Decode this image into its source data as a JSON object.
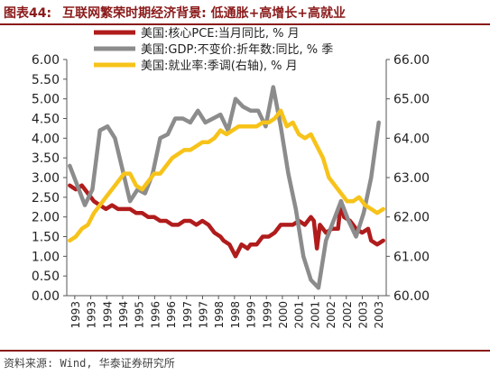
{
  "figure": {
    "label": "图表44:",
    "title": "互联网繁荣时期经济背景: 低通胀+高增长+高就业"
  },
  "source": "资料来源: Wind, 华泰证券研究所",
  "chart_data": {
    "type": "line",
    "title": "",
    "legend_position": "top-center",
    "grid": false,
    "x_tick_labels": [
      "1993",
      "1993",
      "1994",
      "1994",
      "1995",
      "1996",
      "1996",
      "1997",
      "1997",
      "1998",
      "1998",
      "1999",
      "1999",
      "2000",
      "2001",
      "2001",
      "2002",
      "2002",
      "2003",
      "2003"
    ],
    "x_range": [
      1992.9,
      2003.5
    ],
    "y_left": {
      "range": [
        0,
        6
      ],
      "ticks": [
        "0.00",
        "0.50",
        "1.00",
        "1.50",
        "2.00",
        "2.50",
        "3.00",
        "3.50",
        "4.00",
        "4.50",
        "5.00",
        "5.50",
        "6.00"
      ]
    },
    "y_right": {
      "range": [
        60,
        66
      ],
      "ticks": [
        "60.00",
        "61.00",
        "62.00",
        "63.00",
        "64.00",
        "65.00",
        "66.00"
      ]
    },
    "colors": {
      "pce": "#b01c1c",
      "gdp": "#8c8c8c",
      "emp": "#f7c31a"
    },
    "series": [
      {
        "key": "pce",
        "name": "美国:核心PCE:当月同比, % 月",
        "axis": "left",
        "x": [
          1993.0,
          1993.2,
          1993.4,
          1993.6,
          1993.8,
          1994.0,
          1994.2,
          1994.4,
          1994.6,
          1994.8,
          1995.0,
          1995.2,
          1995.4,
          1995.6,
          1995.8,
          1996.0,
          1996.2,
          1996.4,
          1996.6,
          1996.8,
          1997.0,
          1997.2,
          1997.4,
          1997.6,
          1997.8,
          1998.0,
          1998.1,
          1998.3,
          1998.5,
          1998.7,
          1998.9,
          1999.0,
          1999.2,
          1999.4,
          1999.6,
          1999.8,
          2000.0,
          2000.2,
          2000.4,
          2000.6,
          2000.8,
          2001.0,
          2001.1,
          2001.2,
          2001.3,
          2001.5,
          2001.7,
          2001.9,
          2002.0,
          2002.1,
          2002.3,
          2002.5,
          2002.7,
          2002.9,
          2003.0,
          2003.2,
          2003.4
        ],
        "values": [
          2.8,
          2.7,
          2.8,
          2.6,
          2.4,
          2.3,
          2.2,
          2.3,
          2.2,
          2.2,
          2.2,
          2.1,
          2.1,
          2.0,
          2.0,
          1.9,
          1.9,
          1.8,
          1.8,
          1.9,
          1.9,
          1.8,
          1.9,
          1.8,
          1.6,
          1.5,
          1.4,
          1.3,
          1.0,
          1.3,
          1.2,
          1.3,
          1.3,
          1.5,
          1.5,
          1.6,
          1.8,
          1.8,
          1.8,
          1.9,
          1.8,
          2.0,
          1.9,
          1.2,
          1.8,
          1.6,
          1.7,
          1.7,
          2.4,
          2.0,
          1.9,
          1.7,
          1.6,
          1.7,
          1.4,
          1.3,
          1.4
        ]
      },
      {
        "key": "gdp",
        "name": "美国:GDP:不变价:折年数:同比, % 季",
        "axis": "left",
        "x": [
          1993.0,
          1993.25,
          1993.5,
          1993.75,
          1994.0,
          1994.25,
          1994.5,
          1994.75,
          1995.0,
          1995.25,
          1995.5,
          1995.75,
          1996.0,
          1996.25,
          1996.5,
          1996.75,
          1997.0,
          1997.25,
          1997.5,
          1997.75,
          1998.0,
          1998.25,
          1998.5,
          1998.75,
          1999.0,
          1999.25,
          1999.5,
          1999.75,
          2000.0,
          2000.25,
          2000.5,
          2000.75,
          2001.0,
          2001.25,
          2001.5,
          2001.75,
          2002.0,
          2002.25,
          2002.5,
          2002.75,
          2003.0,
          2003.25
        ],
        "values": [
          3.3,
          2.8,
          2.3,
          2.7,
          4.2,
          4.3,
          4.0,
          3.2,
          2.4,
          2.7,
          2.6,
          3.1,
          4.0,
          4.1,
          4.5,
          4.5,
          4.4,
          4.7,
          4.4,
          4.5,
          4.6,
          4.2,
          5.0,
          4.8,
          4.7,
          4.7,
          4.3,
          5.3,
          4.3,
          3.1,
          2.2,
          1.0,
          0.4,
          0.2,
          1.4,
          1.9,
          2.4,
          1.9,
          1.5,
          2.1,
          3.0,
          4.4
        ]
      },
      {
        "key": "emp",
        "name": "美国:就业率:季调(右轴), % 月",
        "axis": "right",
        "x": [
          1993.0,
          1993.2,
          1993.4,
          1993.6,
          1993.8,
          1994.0,
          1994.2,
          1994.4,
          1994.6,
          1994.8,
          1995.0,
          1995.2,
          1995.4,
          1995.6,
          1995.8,
          1996.0,
          1996.2,
          1996.4,
          1996.6,
          1996.8,
          1997.0,
          1997.2,
          1997.4,
          1997.6,
          1997.8,
          1998.0,
          1998.2,
          1998.4,
          1998.6,
          1998.8,
          1999.0,
          1999.2,
          1999.4,
          1999.6,
          1999.8,
          2000.0,
          2000.2,
          2000.4,
          2000.6,
          2000.8,
          2001.0,
          2001.2,
          2001.4,
          2001.6,
          2001.8,
          2002.0,
          2002.2,
          2002.4,
          2002.6,
          2002.8,
          2003.0,
          2003.2,
          2003.4
        ],
        "values": [
          61.4,
          61.5,
          61.7,
          61.8,
          62.1,
          62.3,
          62.5,
          62.7,
          62.9,
          63.1,
          63.1,
          62.8,
          62.7,
          62.9,
          63.1,
          63.1,
          63.3,
          63.5,
          63.6,
          63.7,
          63.7,
          63.8,
          63.9,
          63.9,
          64.0,
          64.2,
          64.1,
          64.2,
          64.3,
          64.3,
          64.3,
          64.3,
          64.4,
          64.4,
          64.5,
          64.7,
          64.3,
          64.4,
          64.1,
          64.0,
          64.1,
          63.8,
          63.5,
          63.0,
          62.8,
          62.6,
          62.4,
          62.4,
          62.5,
          62.3,
          62.2,
          62.1,
          62.2
        ]
      }
    ]
  }
}
